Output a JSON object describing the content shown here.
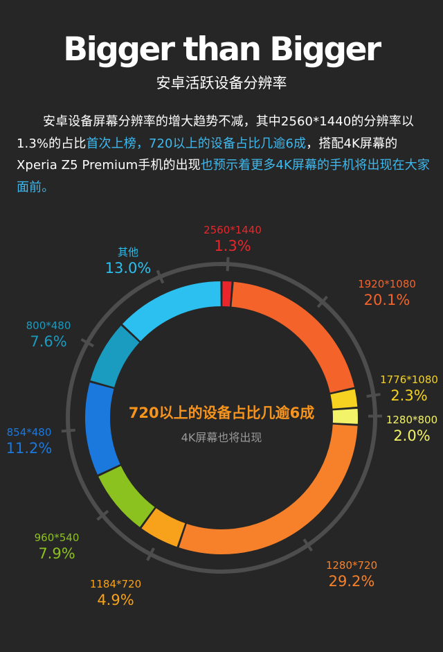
{
  "header": {
    "title": "Bigger than Bigger",
    "subtitle": "安卓活跃设备分辨率"
  },
  "intro": {
    "part1": "安卓设备屏幕分辨率的增大趋势不减，其中2560*1440的分辨率以1.3%的占比",
    "highlight1": "首次上榜，720以上的设备占比几逾6成",
    "part2": "，搭配4K屏幕的Xperia Z5 Premium手机的出现",
    "highlight2": "也预示着更多4K屏幕的手机将出现在大家面前。"
  },
  "center": {
    "main": "720以上的设备占比几逾6成",
    "sub": "4K屏幕也将出现"
  },
  "colors": {
    "background": "#262626",
    "outer_ring": "#4d4d4d",
    "highlight_text": "#3fb9ee",
    "center_text": "#f7941d"
  },
  "chart_data": {
    "type": "pie",
    "variant": "donut",
    "categories": [
      "2560*1440",
      "1920*1080",
      "1776*1080",
      "1280*800",
      "1280*720",
      "1184*720",
      "960*540",
      "854*480",
      "800*480",
      "其他"
    ],
    "values": [
      1.3,
      20.1,
      2.3,
      2.0,
      29.2,
      4.9,
      7.9,
      11.2,
      7.6,
      13.0
    ],
    "value_labels": [
      "1.3%",
      "20.1%",
      "2.3%",
      "2.0%",
      "29.2%",
      "4.9%",
      "7.9%",
      "11.2%",
      "7.6%",
      "13.0%"
    ],
    "colors": [
      "#e8262b",
      "#f4642a",
      "#f6d320",
      "#f3f36a",
      "#f7812b",
      "#f8a21b",
      "#8cc220",
      "#1b79de",
      "#1a9bc0",
      "#2bc0f0"
    ],
    "label_colors": [
      "#e8262b",
      "#f4642a",
      "#f6d320",
      "#f3f36a",
      "#f7812b",
      "#f8a21b",
      "#8cc220",
      "#1b79de",
      "#1a9bc0",
      "#2bc0f0"
    ],
    "start": "top, clockwise"
  }
}
